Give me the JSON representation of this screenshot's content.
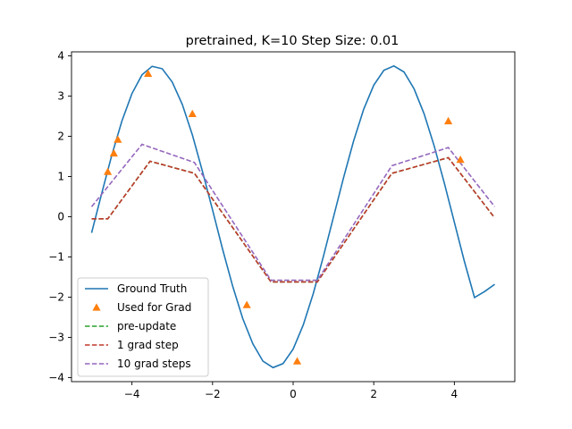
{
  "chart_data": {
    "type": "line",
    "title": "pretrained, K=10 Step Size: 0.01",
    "xlabel": "",
    "ylabel": "",
    "xlim": [
      -5.5,
      5.5
    ],
    "ylim": [
      -4.1,
      4.1
    ],
    "xticks": [
      -4,
      -2,
      0,
      2,
      4
    ],
    "yticks": [
      -4,
      -3,
      -2,
      -1,
      0,
      1,
      2,
      3,
      4
    ],
    "grid": false,
    "legend_placement": "lower-left",
    "series": [
      {
        "name": "Ground Truth",
        "style": "solid",
        "color": "#1f77b4",
        "x": [
          -5.0,
          -4.75,
          -4.5,
          -4.25,
          -4.0,
          -3.75,
          -3.5,
          -3.25,
          -3.0,
          -2.75,
          -2.5,
          -2.25,
          -2.0,
          -1.75,
          -1.5,
          -1.25,
          -1.0,
          -0.75,
          -0.5,
          -0.25,
          0.0,
          0.25,
          0.5,
          0.75,
          1.0,
          1.25,
          1.5,
          1.75,
          2.0,
          2.25,
          2.5,
          2.75,
          3.0,
          3.25,
          3.5,
          3.75,
          4.0,
          4.25,
          4.5,
          4.75,
          5.0
        ],
        "y": [
          -0.4,
          0.58,
          1.53,
          2.38,
          3.06,
          3.53,
          3.74,
          3.68,
          3.35,
          2.79,
          2.03,
          1.13,
          0.17,
          -0.81,
          -1.73,
          -2.53,
          -3.16,
          -3.59,
          -3.75,
          -3.65,
          -3.29,
          -2.69,
          -1.91,
          -0.99,
          -0.01,
          0.97,
          1.88,
          2.67,
          3.27,
          3.64,
          3.75,
          3.6,
          3.18,
          2.56,
          1.76,
          0.84,
          -0.14,
          -1.11,
          -2.01,
          -1.86,
          -1.68
        ]
      },
      {
        "name": "pre-update",
        "style": "dashed",
        "color": "#2ca02c",
        "x": [
          -5.0,
          -4.6,
          -3.55,
          -2.45,
          -0.55,
          0.6,
          2.45,
          3.85,
          5.0
        ],
        "y": [
          -0.05,
          -0.05,
          1.38,
          1.08,
          -1.62,
          -1.62,
          1.08,
          1.47,
          -0.03
        ]
      },
      {
        "name": "1 grad step",
        "style": "dashed",
        "color": "#c0392b",
        "x": [
          -5.0,
          -4.6,
          -3.55,
          -2.45,
          -0.55,
          0.6,
          2.45,
          3.85,
          5.0
        ],
        "y": [
          -0.05,
          -0.05,
          1.38,
          1.08,
          -1.62,
          -1.62,
          1.08,
          1.47,
          -0.03
        ]
      },
      {
        "name": "10 grad steps",
        "style": "dashed",
        "color": "#9467bd",
        "x": [
          -5.0,
          -3.75,
          -2.45,
          -0.55,
          0.6,
          2.45,
          3.85,
          5.0
        ],
        "y": [
          0.25,
          1.8,
          1.35,
          -1.58,
          -1.58,
          1.27,
          1.72,
          0.25
        ]
      }
    ],
    "points": {
      "name": "Used for Grad",
      "marker": "triangle",
      "color": "#ff7f0e",
      "x": [
        -4.6,
        -4.45,
        -4.35,
        -3.6,
        -2.5,
        -1.15,
        0.1,
        3.85,
        4.15
      ],
      "y": [
        1.12,
        1.58,
        1.92,
        3.56,
        2.56,
        -2.19,
        -3.59,
        2.38,
        1.42
      ]
    }
  }
}
